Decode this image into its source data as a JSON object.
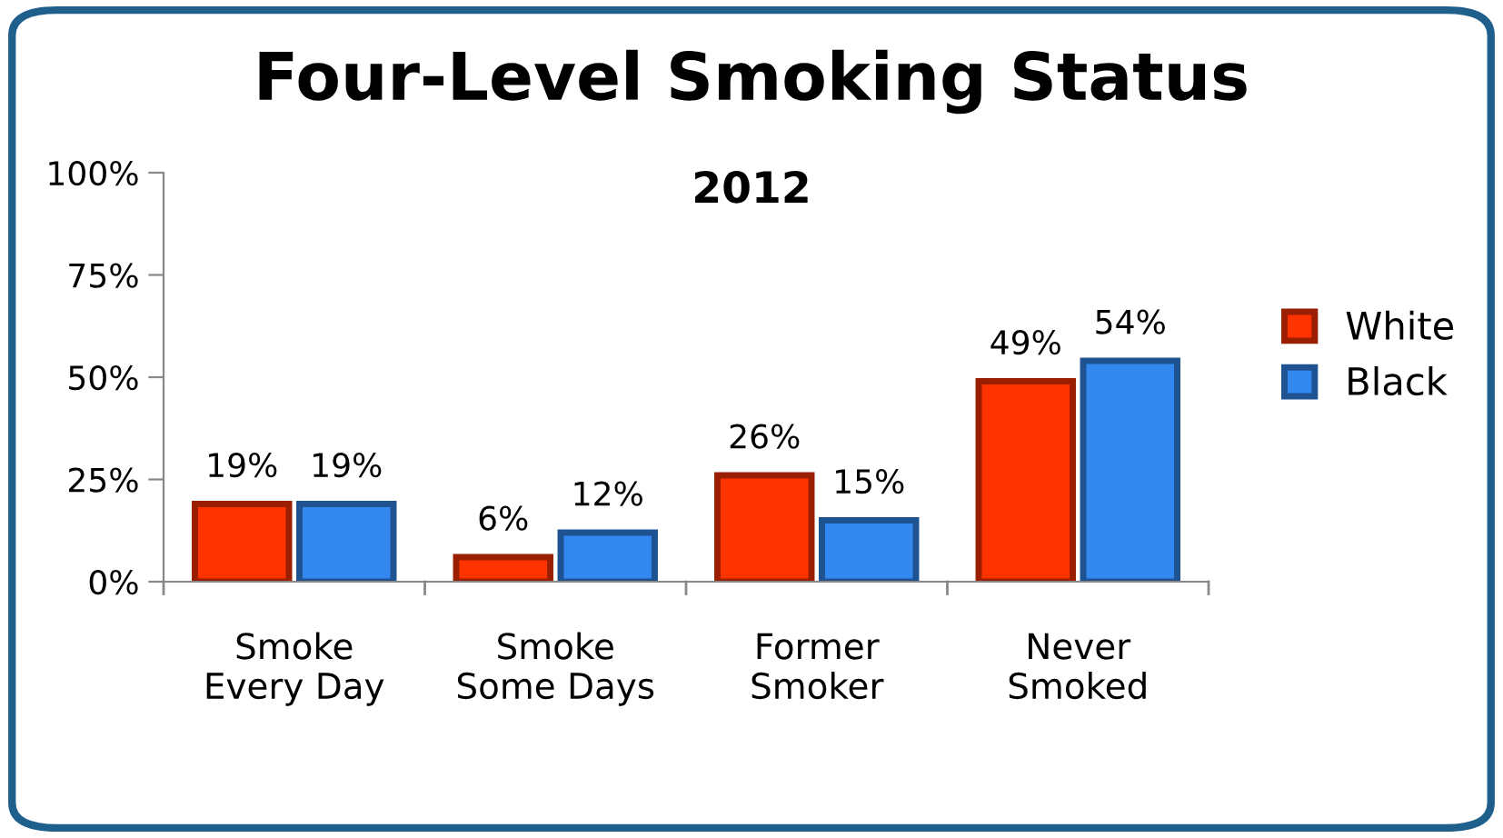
{
  "chart_data": {
    "type": "bar",
    "title": "Four-Level Smoking Status",
    "subtitle": "2012",
    "categories": [
      "Smoke\nEvery Day",
      "Smoke\nSome Days",
      "Former\nSmoker",
      "Never\nSmoked"
    ],
    "series": [
      {
        "name": "White",
        "color": "#ff3300",
        "values": [
          19,
          6,
          26,
          49
        ],
        "value_labels": [
          "19%",
          "6%",
          "26%",
          "49%"
        ]
      },
      {
        "name": "Black",
        "color": "#3388f0",
        "values": [
          19,
          12,
          15,
          54
        ],
        "value_labels": [
          "19%",
          "12%",
          "15%",
          "54%"
        ]
      }
    ],
    "ylim": [
      0,
      100
    ],
    "yticks": [
      {
        "value": 0,
        "label": "0%"
      },
      {
        "value": 25,
        "label": "25%"
      },
      {
        "value": 50,
        "label": "50%"
      },
      {
        "value": 75,
        "label": "75%"
      },
      {
        "value": 100,
        "label": "100%"
      }
    ],
    "grid": false,
    "legend": "right"
  }
}
